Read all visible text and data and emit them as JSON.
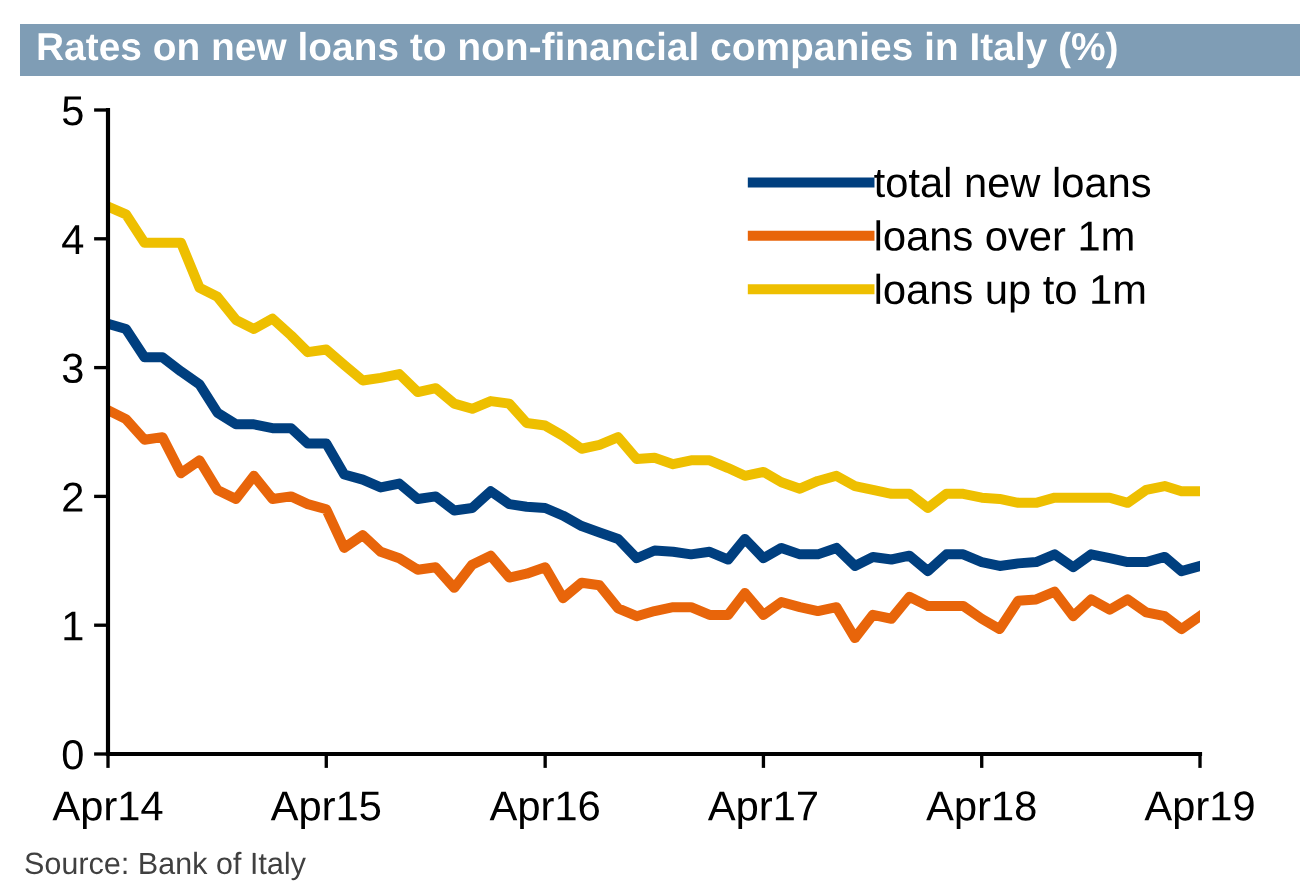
{
  "chart_data": {
    "type": "line",
    "title": "Rates on new loans to non-financial companies in Italy (%)",
    "x": [
      "2014-04",
      "2014-05",
      "2014-06",
      "2014-07",
      "2014-08",
      "2014-09",
      "2014-10",
      "2014-11",
      "2014-12",
      "2015-01",
      "2015-02",
      "2015-03",
      "2015-04",
      "2015-05",
      "2015-06",
      "2015-07",
      "2015-08",
      "2015-09",
      "2015-10",
      "2015-11",
      "2015-12",
      "2016-01",
      "2016-02",
      "2016-03",
      "2016-04",
      "2016-05",
      "2016-06",
      "2016-07",
      "2016-08",
      "2016-09",
      "2016-10",
      "2016-11",
      "2016-12",
      "2017-01",
      "2017-02",
      "2017-03",
      "2017-04",
      "2017-05",
      "2017-06",
      "2017-07",
      "2017-08",
      "2017-09",
      "2017-10",
      "2017-11",
      "2017-12",
      "2018-01",
      "2018-02",
      "2018-03",
      "2018-04",
      "2018-05",
      "2018-06",
      "2018-07",
      "2018-08",
      "2018-09",
      "2018-10",
      "2018-11",
      "2018-12",
      "2019-01",
      "2019-02",
      "2019-03",
      "2019-04"
    ],
    "series": [
      {
        "name": "total new loans",
        "color": "#003f7f",
        "values": [
          3.34,
          3.3,
          3.08,
          3.08,
          2.97,
          2.87,
          2.65,
          2.56,
          2.56,
          2.53,
          2.53,
          2.41,
          2.41,
          2.17,
          2.13,
          2.07,
          2.1,
          1.98,
          2.0,
          1.89,
          1.91,
          2.04,
          1.94,
          1.92,
          1.91,
          1.85,
          1.77,
          1.72,
          1.67,
          1.52,
          1.58,
          1.57,
          1.55,
          1.57,
          1.51,
          1.67,
          1.52,
          1.6,
          1.55,
          1.55,
          1.6,
          1.46,
          1.53,
          1.51,
          1.54,
          1.42,
          1.55,
          1.55,
          1.49,
          1.46,
          1.48,
          1.49,
          1.55,
          1.45,
          1.55,
          1.52,
          1.49,
          1.49,
          1.53,
          1.42,
          1.46
        ]
      },
      {
        "name": "loans over 1m",
        "color": "#e8650a",
        "values": [
          2.67,
          2.6,
          2.44,
          2.46,
          2.18,
          2.28,
          2.05,
          1.98,
          2.16,
          1.98,
          2.0,
          1.94,
          1.9,
          1.6,
          1.7,
          1.57,
          1.52,
          1.43,
          1.45,
          1.29,
          1.47,
          1.54,
          1.37,
          1.4,
          1.45,
          1.21,
          1.33,
          1.31,
          1.13,
          1.07,
          1.11,
          1.14,
          1.14,
          1.08,
          1.08,
          1.25,
          1.08,
          1.18,
          1.14,
          1.11,
          1.14,
          0.9,
          1.08,
          1.05,
          1.22,
          1.15,
          1.15,
          1.15,
          1.05,
          0.97,
          1.19,
          1.2,
          1.26,
          1.07,
          1.2,
          1.12,
          1.2,
          1.1,
          1.07,
          0.97,
          1.07
        ]
      },
      {
        "name": "loans up to 1m",
        "color": "#eebf00",
        "values": [
          4.25,
          4.19,
          3.97,
          3.97,
          3.97,
          3.62,
          3.55,
          3.37,
          3.3,
          3.38,
          3.25,
          3.12,
          3.14,
          3.02,
          2.9,
          2.92,
          2.95,
          2.81,
          2.84,
          2.72,
          2.68,
          2.74,
          2.72,
          2.57,
          2.55,
          2.47,
          2.37,
          2.4,
          2.46,
          2.29,
          2.3,
          2.25,
          2.28,
          2.28,
          2.22,
          2.16,
          2.19,
          2.11,
          2.06,
          2.12,
          2.16,
          2.08,
          2.05,
          2.02,
          2.02,
          1.91,
          2.02,
          2.02,
          1.99,
          1.98,
          1.95,
          1.95,
          1.99,
          1.99,
          1.99,
          1.99,
          1.95,
          2.05,
          2.08,
          2.04,
          2.04
        ]
      }
    ],
    "xlim": [
      "2014-04",
      "2019-04"
    ],
    "xticks": [
      {
        "value": "2014-04",
        "label": "Apr14"
      },
      {
        "value": "2015-04",
        "label": "Apr15"
      },
      {
        "value": "2016-04",
        "label": "Apr16"
      },
      {
        "value": "2017-04",
        "label": "Apr17"
      },
      {
        "value": "2018-04",
        "label": "Apr18"
      },
      {
        "value": "2019-04",
        "label": "Apr19"
      }
    ],
    "ylim": [
      0,
      5
    ],
    "yticks": [
      0,
      1,
      2,
      3,
      4,
      5
    ],
    "legend": "top right",
    "grid": false,
    "marker": "none",
    "line_style": "solid",
    "annotations": [
      "Source: Bank of Italy"
    ]
  }
}
